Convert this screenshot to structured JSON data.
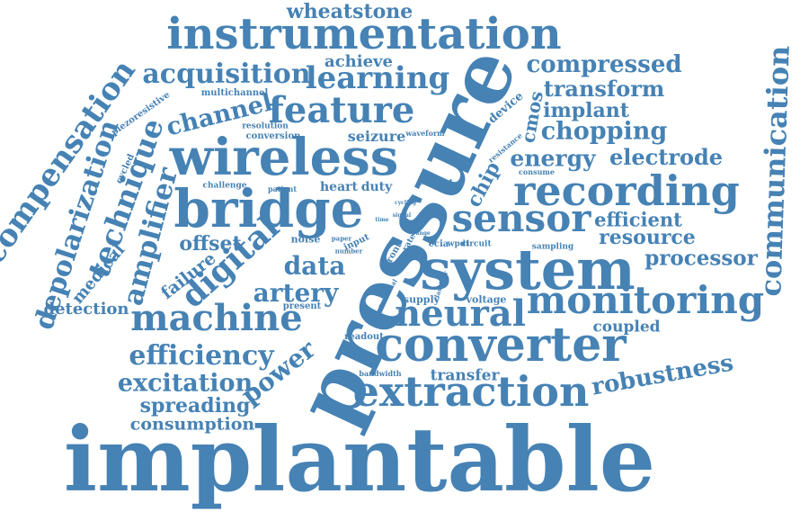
{
  "accent_color": "#4682b4",
  "words": [
    "implantable",
    "pressure",
    "system",
    "bridge",
    "wireless",
    "converter",
    "extraction",
    "instrumentation",
    "recording",
    "sensor",
    "monitoring",
    "neural",
    "machine",
    "feature",
    "digital",
    "learning",
    "acquisition",
    "compensation",
    "communication",
    "technique",
    "depolarization",
    "amplifier",
    "efficiency",
    "excitation",
    "robustness",
    "power",
    "channel",
    "artery",
    "data",
    "chopping",
    "energy",
    "electrode",
    "transform",
    "compressed",
    "processor",
    "implant",
    "resource",
    "efficient",
    "wheatstone",
    "spreading",
    "consumption",
    "offset",
    "detection",
    "medical",
    "failure",
    "chip",
    "cmos",
    "achieve",
    "coupled",
    "transfer",
    "seizure",
    "heart",
    "duty",
    "device",
    "piezoresistive",
    "cycled",
    "conversion",
    "resolution",
    "multichannel",
    "challenge",
    "patient",
    "noise",
    "present",
    "readout",
    "bandwidth",
    "supply",
    "voltage",
    "ccia",
    "wpdt",
    "circuit",
    "sampling",
    "current",
    "resistance",
    "consume",
    "waveform",
    "input",
    "number",
    "paper",
    "front",
    "rate",
    "time",
    "signal",
    "cycling",
    "range",
    "potential",
    "classifier"
  ]
}
